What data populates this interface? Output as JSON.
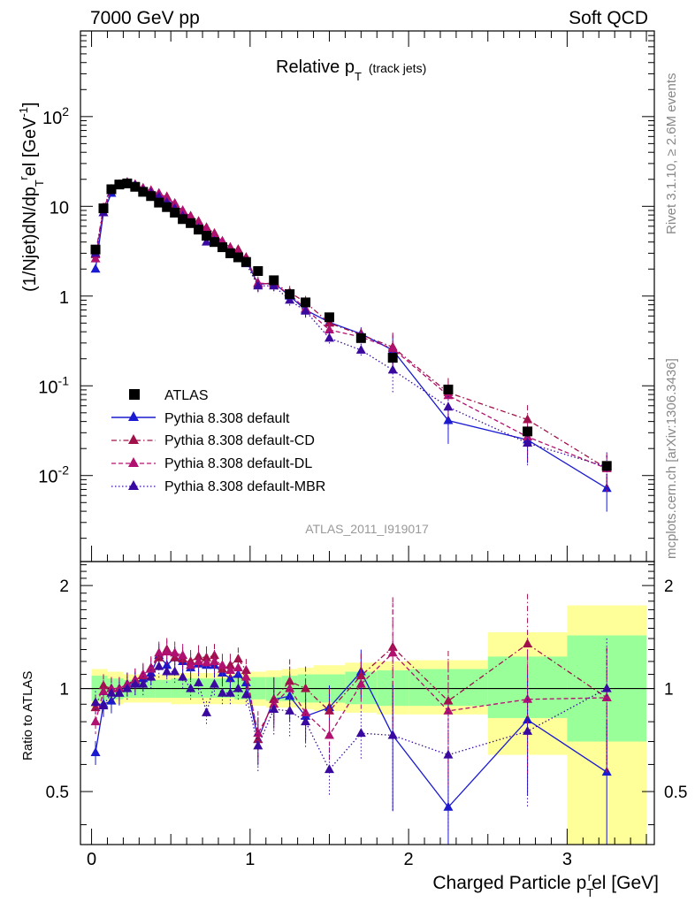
{
  "header": {
    "left": "7000 GeV pp",
    "right": "Soft QCD"
  },
  "side_text": {
    "top": "Rivet 3.1.10, ≥ 2.6M events",
    "bottom": "mcplots.cern.ch [arXiv:1306.3436]"
  },
  "colors": {
    "atlas": "#000000",
    "default": "#1a1ad0",
    "cd": "#a0104a",
    "dl": "#b01070",
    "mbr": "#3a0aa0",
    "band_outer": "#ffff99",
    "band_inner": "#99ff99"
  },
  "chart_data": [
    {
      "type": "scatter",
      "title": "Relative p",
      "title_sub": "T",
      "title_note": "(track jets)",
      "watermark": "ATLAS_2011_I919017",
      "ylabel": "(1/Njet)dN/dp",
      "ylabel_sub": "T",
      "ylabel_sup": "r",
      "ylabel_tail": "el [GeV",
      "ylabel_unit_sup": "-1",
      "ylabel_end": "]",
      "yscale": "log",
      "ylim": [
        0.0011,
        900
      ],
      "xlim": [
        -0.07,
        3.55
      ],
      "yticks": [
        {
          "v": 0.01,
          "base": "10",
          "exp": "-2"
        },
        {
          "v": 0.1,
          "base": "10",
          "exp": "-1"
        },
        {
          "v": 1,
          "base": "1",
          "exp": ""
        },
        {
          "v": 10,
          "base": "10",
          "exp": ""
        },
        {
          "v": 100,
          "base": "10",
          "exp": "2"
        }
      ],
      "legend": [
        "ATLAS",
        "Pythia 8.308 default",
        "Pythia 8.308 default-CD",
        "Pythia 8.308 default-DL",
        "Pythia 8.308 default-MBR"
      ],
      "x": [
        0.025,
        0.075,
        0.125,
        0.175,
        0.225,
        0.275,
        0.325,
        0.375,
        0.425,
        0.475,
        0.525,
        0.575,
        0.625,
        0.675,
        0.725,
        0.775,
        0.825,
        0.875,
        0.925,
        0.975,
        1.05,
        1.15,
        1.25,
        1.35,
        1.5,
        1.7,
        1.9,
        2.25,
        2.75,
        3.25
      ],
      "series": [
        {
          "name": "ATLAS",
          "marker": "square",
          "values": [
            3.3,
            9.5,
            15.5,
            17.5,
            18.0,
            16.5,
            14.5,
            13.0,
            11.0,
            9.8,
            8.5,
            7.2,
            6.5,
            5.5,
            4.7,
            4.0,
            3.5,
            3.0,
            2.7,
            2.4,
            1.9,
            1.5,
            1.05,
            0.85,
            0.58,
            0.34,
            0.205,
            0.091,
            0.031,
            0.0128
          ]
        },
        {
          "name": "Pythia 8.308 default",
          "marker": "triangle",
          "style": "solid",
          "values": [
            2.0,
            8.5,
            14.0,
            17.0,
            18.5,
            17.2,
            15.5,
            14.5,
            13.8,
            11.5,
            10.5,
            8.7,
            7.5,
            6.5,
            5.5,
            4.7,
            3.9,
            3.2,
            3.0,
            2.5,
            1.35,
            1.4,
            1.0,
            0.7,
            0.51,
            0.38,
            0.25,
            0.041,
            0.025,
            0.0072
          ]
        },
        {
          "name": "Pythia 8.308 default-CD",
          "marker": "triangle",
          "style": "dashdot",
          "values": [
            2.9,
            9.7,
            15.5,
            17.5,
            18.5,
            17.5,
            15.8,
            15.0,
            13.5,
            12.8,
            10.5,
            8.8,
            7.8,
            6.8,
            5.8,
            5.0,
            4.0,
            3.5,
            3.3,
            2.7,
            1.35,
            1.4,
            1.1,
            0.85,
            0.5,
            0.37,
            0.27,
            0.084,
            0.042,
            0.012
          ]
        },
        {
          "name": "Pythia 8.308 default-DL",
          "marker": "triangle",
          "style": "dashed",
          "values": [
            2.6,
            9.3,
            15.5,
            17.5,
            18.5,
            17.5,
            16.0,
            14.8,
            14.0,
            12.5,
            10.8,
            9.0,
            7.6,
            6.6,
            5.6,
            4.8,
            4.1,
            3.4,
            3.1,
            2.6,
            1.4,
            1.35,
            1.05,
            0.72,
            0.42,
            0.35,
            0.26,
            0.078,
            0.027,
            0.012
          ]
        },
        {
          "name": "Pythia 8.308 default-MBR",
          "marker": "triangle",
          "style": "dotted",
          "values": [
            3.0,
            8.5,
            15.0,
            17.0,
            18.0,
            17.0,
            15.0,
            14.0,
            12.8,
            11.0,
            9.5,
            7.8,
            6.5,
            5.7,
            4.0,
            4.1,
            3.4,
            2.9,
            2.7,
            2.3,
            1.3,
            1.3,
            0.9,
            0.68,
            0.34,
            0.25,
            0.15,
            0.058,
            0.023,
            0.0125
          ]
        }
      ]
    },
    {
      "type": "scatter",
      "ylabel": "Ratio to ATLAS",
      "xlabel": "Charged Particle p",
      "xlabel_sub": "T",
      "xlabel_sup": "r",
      "xlabel_tail": "el [GeV]",
      "yscale": "log",
      "ylim": [
        0.35,
        2.35
      ],
      "xlim": [
        -0.07,
        3.55
      ],
      "yticks": [
        0.5,
        1,
        2
      ],
      "xticks": [
        0,
        1,
        2,
        3
      ],
      "bands": {
        "edges": [
          0.0,
          0.1,
          0.2,
          0.3,
          0.4,
          0.5,
          0.6,
          0.7,
          0.8,
          0.9,
          1.0,
          1.1,
          1.2,
          1.3,
          1.4,
          1.6,
          1.8,
          2.0,
          2.5,
          3.0,
          3.5
        ],
        "outer_lo": [
          0.88,
          0.9,
          0.91,
          0.91,
          0.91,
          0.9,
          0.9,
          0.9,
          0.9,
          0.9,
          0.89,
          0.88,
          0.88,
          0.87,
          0.86,
          0.85,
          0.84,
          0.84,
          0.64,
          0.35
        ],
        "outer_hi": [
          1.14,
          1.12,
          1.1,
          1.1,
          1.1,
          1.11,
          1.11,
          1.11,
          1.11,
          1.11,
          1.12,
          1.13,
          1.14,
          1.15,
          1.17,
          1.19,
          1.2,
          1.21,
          1.46,
          1.75
        ],
        "inner_lo": [
          0.92,
          0.93,
          0.94,
          0.94,
          0.94,
          0.94,
          0.94,
          0.94,
          0.94,
          0.93,
          0.93,
          0.92,
          0.92,
          0.91,
          0.91,
          0.9,
          0.89,
          0.89,
          0.82,
          0.7
        ],
        "inner_hi": [
          1.09,
          1.07,
          1.06,
          1.06,
          1.06,
          1.07,
          1.07,
          1.07,
          1.07,
          1.07,
          1.08,
          1.08,
          1.09,
          1.1,
          1.1,
          1.12,
          1.13,
          1.14,
          1.24,
          1.43
        ]
      },
      "series": [
        {
          "name": "Pythia 8.308 default",
          "values": [
            0.65,
            0.9,
            0.92,
            0.97,
            1.03,
            1.04,
            1.07,
            1.11,
            1.25,
            1.17,
            1.23,
            1.2,
            1.15,
            1.18,
            1.17,
            1.17,
            1.11,
            1.07,
            1.1,
            1.04,
            0.71,
            0.93,
            0.95,
            0.83,
            0.88,
            1.12,
            0.73,
            0.45,
            0.81,
            0.57
          ]
        },
        {
          "name": "Pythia 8.308 default-CD",
          "values": [
            0.88,
            1.02,
            1.0,
            1.0,
            1.03,
            1.06,
            1.09,
            1.15,
            1.23,
            1.3,
            1.23,
            1.22,
            1.2,
            1.24,
            1.23,
            1.25,
            1.14,
            1.17,
            1.22,
            1.13,
            0.71,
            0.93,
            1.05,
            1.0,
            0.86,
            1.09,
            1.32,
            0.92,
            1.35,
            0.94
          ]
        },
        {
          "name": "Pythia 8.308 default-DL",
          "values": [
            0.8,
            0.98,
            1.0,
            1.0,
            1.03,
            1.06,
            1.1,
            1.14,
            1.27,
            1.28,
            1.27,
            1.25,
            1.17,
            1.2,
            1.19,
            1.2,
            1.17,
            1.13,
            1.15,
            1.08,
            0.74,
            0.9,
            1.0,
            0.85,
            0.73,
            1.03,
            1.27,
            0.86,
            0.93,
            0.94
          ]
        },
        {
          "name": "Pythia 8.308 default-MBR",
          "values": [
            0.91,
            0.89,
            0.97,
            0.97,
            1.0,
            1.03,
            1.03,
            1.08,
            1.16,
            1.12,
            1.12,
            1.08,
            1.0,
            1.04,
            0.85,
            1.03,
            0.97,
            0.97,
            1.0,
            0.96,
            0.68,
            0.87,
            0.86,
            0.8,
            0.58,
            0.74,
            0.73,
            0.64,
            0.75,
            1.0
          ]
        }
      ]
    }
  ]
}
